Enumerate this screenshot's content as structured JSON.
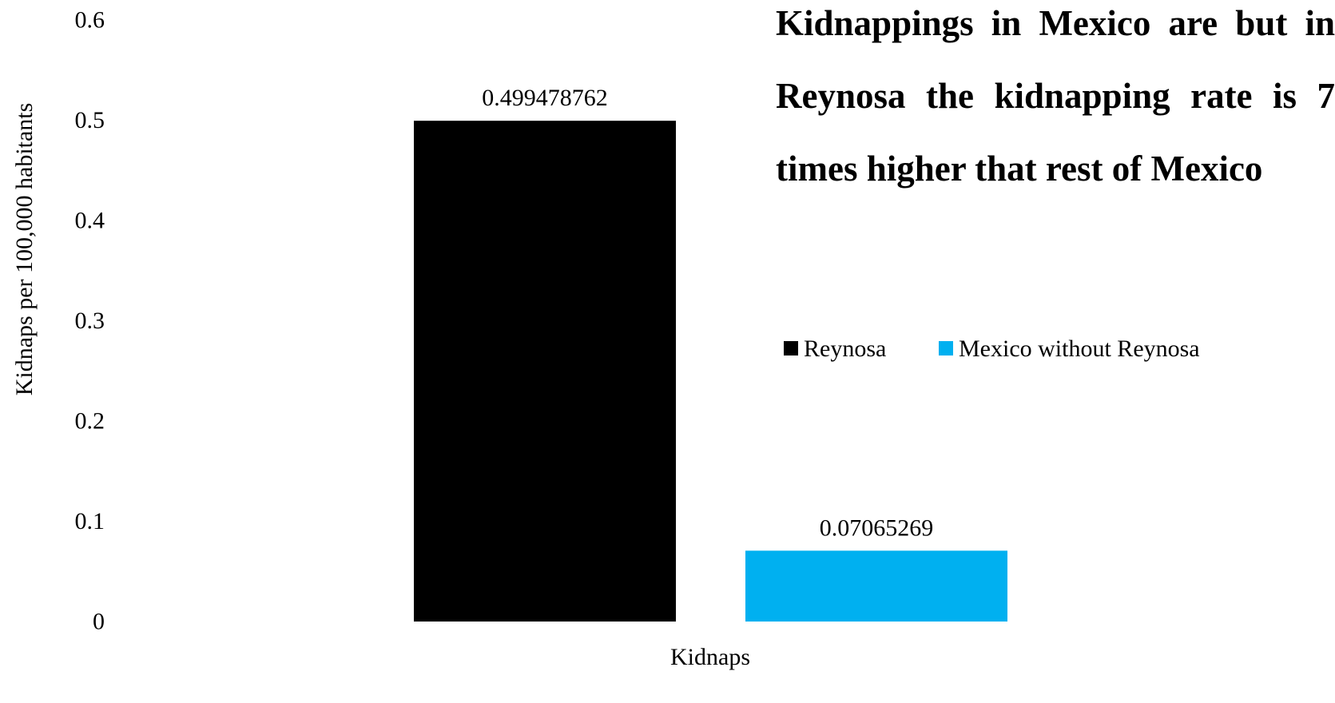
{
  "chart_data": {
    "type": "bar",
    "title": "Kidnappings in Mexico are but in Reynosa the kidnapping rate is 7 times higher that rest of Mexico",
    "xlabel": "Kidnaps",
    "ylabel": "Kidnaps per 100,000 habitants",
    "categories": [
      "Kidnaps"
    ],
    "series": [
      {
        "name": "Reynosa",
        "values": [
          0.499478762
        ],
        "label": "0.499478762",
        "color": "#000000"
      },
      {
        "name": "Mexico without Reynosa",
        "values": [
          0.07065269
        ],
        "label": "0.07065269",
        "color": "#00B0F0"
      }
    ],
    "ylim": [
      0,
      0.6
    ],
    "yticks": [
      {
        "value": 0,
        "label": "0"
      },
      {
        "value": 0.1,
        "label": "0.1"
      },
      {
        "value": 0.2,
        "label": "0.2"
      },
      {
        "value": 0.3,
        "label": "0.3"
      },
      {
        "value": 0.4,
        "label": "0.4"
      },
      {
        "value": 0.5,
        "label": "0.5"
      },
      {
        "value": 0.6,
        "label": "0.6"
      }
    ],
    "grid": false,
    "legend_position": "top-right"
  }
}
